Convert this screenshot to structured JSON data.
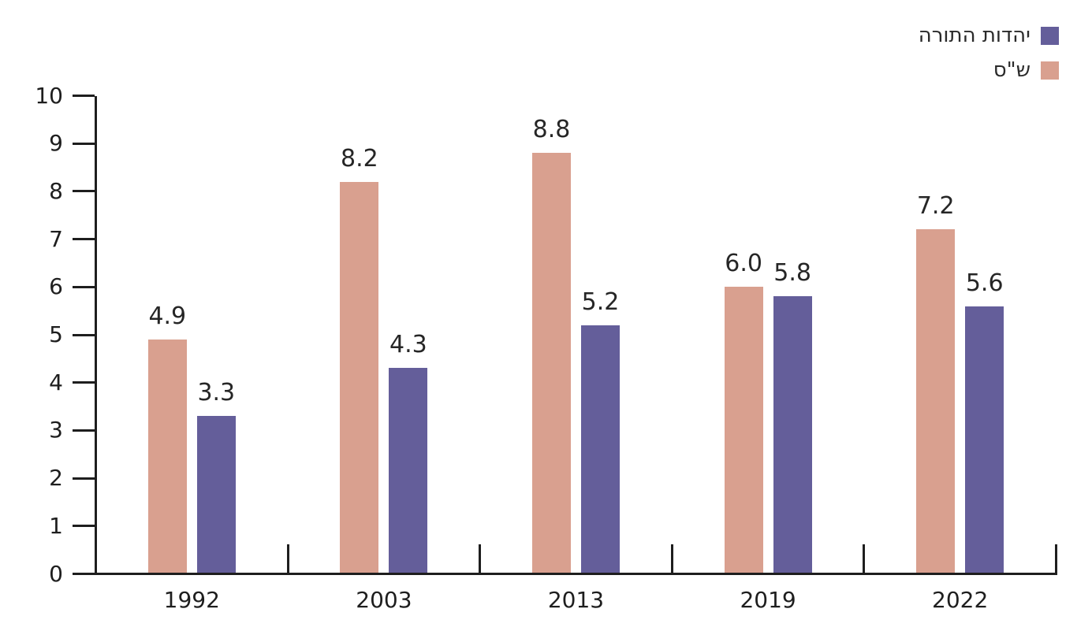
{
  "chart_data": {
    "type": "bar",
    "categories": [
      "1992",
      "2003",
      "2013",
      "2019",
      "2022"
    ],
    "series": [
      {
        "name": "ש\"ס",
        "color": "#D9A08F",
        "values": [
          4.9,
          8.2,
          8.8,
          6.0,
          7.2
        ]
      },
      {
        "name": "יהדות התורה",
        "color": "#645E9A",
        "values": [
          3.3,
          4.3,
          5.2,
          5.8,
          5.6
        ]
      }
    ],
    "title": "",
    "xlabel": "",
    "ylabel": "",
    "ylim": [
      0,
      10
    ],
    "y_ticks": [
      0,
      1,
      2,
      3,
      4,
      5,
      6,
      7,
      8,
      9,
      10
    ],
    "grid": false,
    "legend_position": "top-right",
    "legend_order": [
      "יהדות התורה",
      "ש\"ס"
    ],
    "value_label_decimals": 1
  },
  "colors": {
    "axis": "#1e1e1e",
    "value_text": "#262626",
    "background": "#ffffff"
  }
}
